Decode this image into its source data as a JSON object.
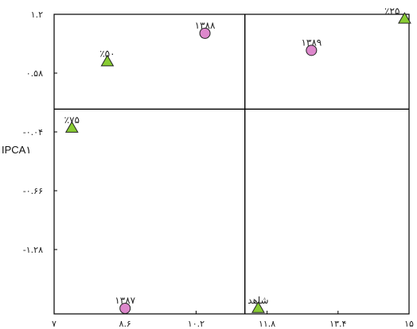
{
  "chart_data": {
    "type": "scatter",
    "xlim": [
      7,
      15
    ],
    "ylim": [
      -1.9,
      1.2
    ],
    "x_ticks": [
      {
        "value": 7,
        "label": "۷"
      },
      {
        "value": 8.6,
        "label": "۸.۶"
      },
      {
        "value": 10.2,
        "label": "۱۰.۲"
      },
      {
        "value": 11.8,
        "label": "۱۱.۸"
      },
      {
        "value": 13.4,
        "label": "۱۳.۴"
      },
      {
        "value": 15,
        "label": "۱۵"
      }
    ],
    "y_ticks": [
      {
        "value": 1.2,
        "label": "۱.۲"
      },
      {
        "value": 0.58,
        "label": "۰.۵۸"
      },
      {
        "value": -0.04,
        "label": "-۰.۰۴"
      },
      {
        "value": -0.66,
        "label": "-۰.۶۶"
      },
      {
        "value": -1.28,
        "label": "-۱.۲۸"
      }
    ],
    "ylabel": "IPCA۱",
    "xlabel": "",
    "reference_lines": {
      "x": 11.3,
      "y": 0.2
    },
    "series": [
      {
        "marker": "circle",
        "color": "#dd88cc",
        "points": [
          {
            "label": "۱۳۸۸",
            "x": 10.4,
            "y": 1.0
          },
          {
            "label": "۱۳۸۹",
            "x": 12.8,
            "y": 0.82
          },
          {
            "label": "۱۳۸۷",
            "x": 8.6,
            "y": -1.9
          }
        ]
      },
      {
        "marker": "triangle",
        "color": "#88cc33",
        "points": [
          {
            "label": "٪۲۵",
            "x": 14.9,
            "y": 1.15
          },
          {
            "label": "٪۵۰",
            "x": 8.2,
            "y": 0.7
          },
          {
            "label": "٪۷۵",
            "x": 7.4,
            "y": 0.0
          },
          {
            "label": "شاهد",
            "x": 11.6,
            "y": -1.9
          }
        ]
      }
    ]
  }
}
